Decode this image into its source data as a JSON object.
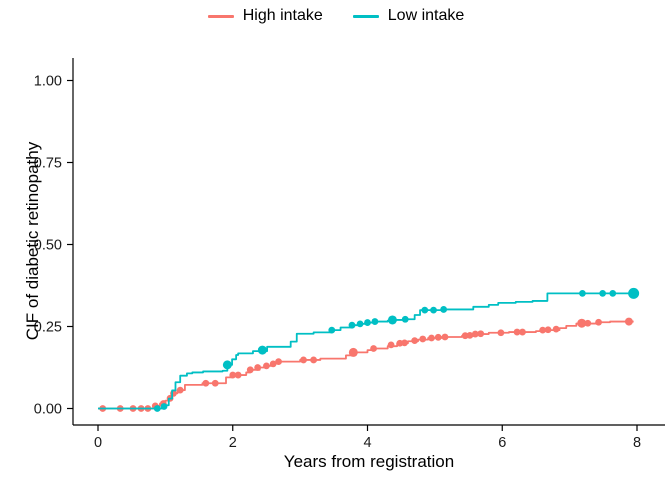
{
  "figure": {
    "background": "#ffffff"
  },
  "legend": {
    "position": "top-center",
    "items": [
      {
        "label": "High intake",
        "color": "#F8766D"
      },
      {
        "label": "Low intake",
        "color": "#00BFC4"
      }
    ]
  },
  "chart_data": {
    "type": "line",
    "subtype": "step-cumulative-incidence",
    "title": "",
    "xlabel": "Years from registration",
    "ylabel": "CIF of diabetic retinopathy",
    "xlim": [
      0,
      8.45
    ],
    "ylim": [
      0,
      1.0
    ],
    "xticks": [
      0,
      2,
      4,
      6,
      8
    ],
    "ytick_values": [
      0,
      0.25,
      0.5,
      0.75,
      1.0
    ],
    "ytick_labels": [
      "0.00",
      "0.25",
      "0.50",
      "0.75",
      "1.00"
    ],
    "grid": false,
    "axis_color": "#000000",
    "tick_label_color": "#1a1a1a",
    "legend_position": "top",
    "series": [
      {
        "name": "High intake",
        "color": "#F8766D",
        "steps": [
          [
            0,
            0
          ],
          [
            0.85,
            0.008
          ],
          [
            0.92,
            0.015
          ],
          [
            1.0,
            0.024
          ],
          [
            1.04,
            0.031
          ],
          [
            1.1,
            0.046
          ],
          [
            1.18,
            0.056
          ],
          [
            1.29,
            0.072
          ],
          [
            1.55,
            0.077
          ],
          [
            1.9,
            0.095
          ],
          [
            1.99,
            0.102
          ],
          [
            2.2,
            0.11
          ],
          [
            2.26,
            0.118
          ],
          [
            2.4,
            0.125
          ],
          [
            2.48,
            0.13
          ],
          [
            2.62,
            0.138
          ],
          [
            2.66,
            0.143
          ],
          [
            3.0,
            0.148
          ],
          [
            3.3,
            0.152
          ],
          [
            3.68,
            0.162
          ],
          [
            3.79,
            0.171
          ],
          [
            4.0,
            0.178
          ],
          [
            4.09,
            0.183
          ],
          [
            4.3,
            0.19
          ],
          [
            4.44,
            0.199
          ],
          [
            4.6,
            0.205
          ],
          [
            4.75,
            0.21
          ],
          [
            4.9,
            0.215
          ],
          [
            5.1,
            0.218
          ],
          [
            5.4,
            0.221
          ],
          [
            5.6,
            0.227
          ],
          [
            5.8,
            0.231
          ],
          [
            6.1,
            0.233
          ],
          [
            6.5,
            0.236
          ],
          [
            6.6,
            0.239
          ],
          [
            6.85,
            0.245
          ],
          [
            6.95,
            0.252
          ],
          [
            7.1,
            0.259
          ],
          [
            7.43,
            0.263
          ],
          [
            7.6,
            0.265
          ],
          [
            7.95,
            0.265
          ]
        ],
        "markers": [
          [
            0.07,
            0
          ],
          [
            0.33,
            0
          ],
          [
            0.52,
            0
          ],
          [
            0.64,
            0
          ],
          [
            0.74,
            0
          ],
          [
            0.85,
            0.008
          ],
          [
            0.97,
            0.015
          ],
          [
            1.07,
            0.031
          ],
          [
            1.12,
            0.046
          ],
          [
            1.22,
            0.056
          ],
          [
            1.6,
            0.077
          ],
          [
            1.74,
            0.077
          ],
          [
            2.0,
            0.102
          ],
          [
            2.08,
            0.102
          ],
          [
            2.26,
            0.118
          ],
          [
            2.37,
            0.125
          ],
          [
            2.5,
            0.13
          ],
          [
            2.6,
            0.136
          ],
          [
            2.68,
            0.143
          ],
          [
            3.05,
            0.148
          ],
          [
            3.2,
            0.148
          ],
          [
            3.79,
            0.171,
            4.5
          ],
          [
            4.09,
            0.183
          ],
          [
            4.35,
            0.194
          ],
          [
            4.48,
            0.199
          ],
          [
            4.55,
            0.2
          ],
          [
            4.7,
            0.207
          ],
          [
            4.82,
            0.212
          ],
          [
            4.95,
            0.215
          ],
          [
            5.05,
            0.217
          ],
          [
            5.15,
            0.218
          ],
          [
            5.45,
            0.222
          ],
          [
            5.52,
            0.223
          ],
          [
            5.6,
            0.227
          ],
          [
            5.68,
            0.228
          ],
          [
            5.98,
            0.231
          ],
          [
            6.22,
            0.233
          ],
          [
            6.3,
            0.233
          ],
          [
            6.6,
            0.239
          ],
          [
            6.68,
            0.24
          ],
          [
            6.8,
            0.242
          ],
          [
            7.18,
            0.26,
            4.5
          ],
          [
            7.27,
            0.26
          ],
          [
            7.43,
            0.263
          ],
          [
            7.88,
            0.265,
            4
          ]
        ]
      },
      {
        "name": "Low intake",
        "color": "#00BFC4",
        "steps": [
          [
            0,
            0
          ],
          [
            0.95,
            0.004
          ],
          [
            1.0,
            0.01
          ],
          [
            1.05,
            0.03
          ],
          [
            1.1,
            0.055
          ],
          [
            1.15,
            0.08
          ],
          [
            1.22,
            0.1
          ],
          [
            1.32,
            0.107
          ],
          [
            1.4,
            0.11
          ],
          [
            1.56,
            0.113
          ],
          [
            1.85,
            0.115
          ],
          [
            1.92,
            0.133
          ],
          [
            1.99,
            0.15
          ],
          [
            2.05,
            0.163
          ],
          [
            2.08,
            0.168
          ],
          [
            2.3,
            0.175
          ],
          [
            2.51,
            0.188
          ],
          [
            2.86,
            0.204
          ],
          [
            2.95,
            0.228
          ],
          [
            3.2,
            0.232
          ],
          [
            3.47,
            0.239
          ],
          [
            3.6,
            0.247
          ],
          [
            3.77,
            0.254
          ],
          [
            3.89,
            0.258
          ],
          [
            4.0,
            0.262
          ],
          [
            4.11,
            0.265
          ],
          [
            4.3,
            0.268
          ],
          [
            4.37,
            0.27
          ],
          [
            4.56,
            0.272
          ],
          [
            4.7,
            0.285
          ],
          [
            4.78,
            0.3
          ],
          [
            5.13,
            0.302
          ],
          [
            5.57,
            0.31
          ],
          [
            5.8,
            0.316
          ],
          [
            5.94,
            0.322
          ],
          [
            6.2,
            0.325
          ],
          [
            6.45,
            0.328
          ],
          [
            6.67,
            0.351
          ],
          [
            7.95,
            0.351
          ]
        ],
        "markers": [
          [
            0.88,
            0
          ],
          [
            0.98,
            0.006
          ],
          [
            1.92,
            0.133,
            4.5
          ],
          [
            2.44,
            0.178,
            4.5
          ],
          [
            3.47,
            0.239
          ],
          [
            3.77,
            0.254
          ],
          [
            3.89,
            0.258
          ],
          [
            4.0,
            0.262
          ],
          [
            4.11,
            0.265
          ],
          [
            4.37,
            0.27,
            4.5
          ],
          [
            4.56,
            0.272
          ],
          [
            4.85,
            0.3
          ],
          [
            4.98,
            0.3
          ],
          [
            5.13,
            0.302
          ],
          [
            7.19,
            0.351
          ],
          [
            7.49,
            0.351
          ],
          [
            7.64,
            0.351
          ],
          [
            7.95,
            0.351,
            5.5
          ]
        ]
      }
    ]
  }
}
